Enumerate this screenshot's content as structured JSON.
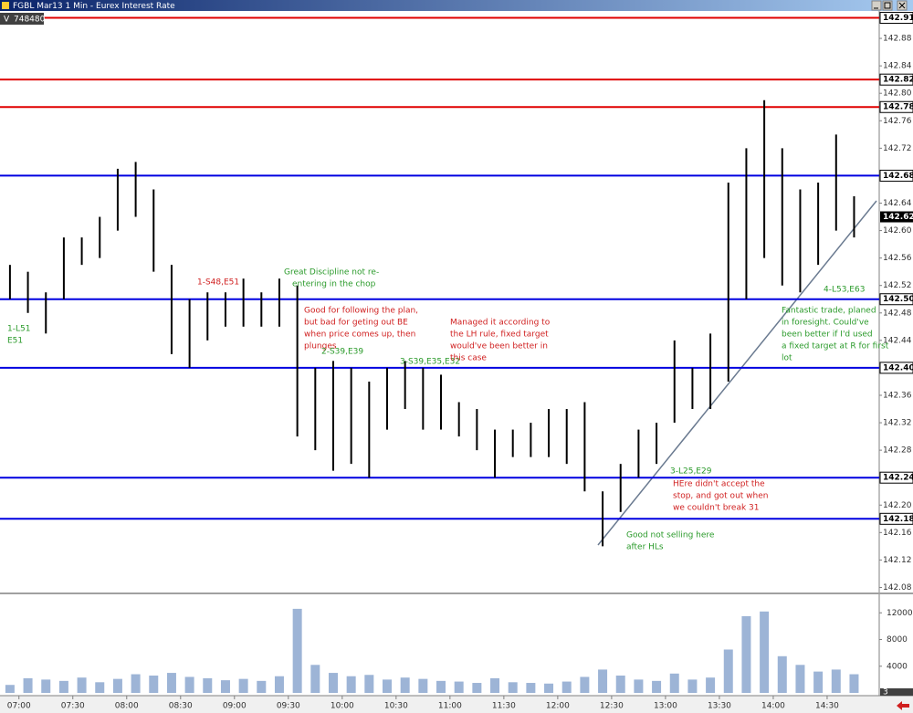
{
  "window_title": "FGBL Mar13 1 Min - Eurex Interest Rate",
  "volume_label": "V",
  "volume_total": 748480,
  "chart_data": {
    "type": "hilo",
    "x": [
      "06:50",
      "07:00",
      "07:10",
      "07:20",
      "07:30",
      "07:40",
      "07:50",
      "08:00",
      "08:10",
      "08:20",
      "08:30",
      "08:40",
      "08:50",
      "09:00",
      "09:10",
      "09:20",
      "09:30",
      "09:40",
      "09:50",
      "10:00",
      "10:10",
      "10:20",
      "10:30",
      "10:40",
      "10:50",
      "11:00",
      "11:10",
      "11:20",
      "11:30",
      "11:40",
      "11:50",
      "12:00",
      "12:10",
      "12:20",
      "12:30",
      "12:40",
      "12:50",
      "13:00",
      "13:10",
      "13:20",
      "13:30",
      "13:40",
      "13:50",
      "14:00",
      "14:10",
      "14:20",
      "14:30",
      "14:40"
    ],
    "high": [
      142.55,
      142.54,
      142.51,
      142.59,
      142.59,
      142.62,
      142.69,
      142.7,
      142.66,
      142.55,
      142.5,
      142.51,
      142.51,
      142.53,
      142.51,
      142.53,
      142.52,
      142.4,
      142.41,
      142.4,
      142.38,
      142.4,
      142.41,
      142.4,
      142.39,
      142.35,
      142.34,
      142.31,
      142.31,
      142.32,
      142.34,
      142.34,
      142.35,
      142.22,
      142.26,
      142.31,
      142.32,
      142.44,
      142.4,
      142.45,
      142.67,
      142.72,
      142.79,
      142.72,
      142.66,
      142.67,
      142.74,
      142.65
    ],
    "low": [
      142.5,
      142.48,
      142.45,
      142.5,
      142.55,
      142.56,
      142.6,
      142.62,
      142.54,
      142.42,
      142.4,
      142.44,
      142.46,
      142.46,
      142.46,
      142.46,
      142.3,
      142.28,
      142.25,
      142.26,
      142.24,
      142.31,
      142.34,
      142.31,
      142.31,
      142.3,
      142.28,
      142.24,
      142.27,
      142.27,
      142.27,
      142.26,
      142.22,
      142.14,
      142.19,
      142.24,
      142.26,
      142.32,
      142.34,
      142.34,
      142.38,
      142.5,
      142.56,
      142.52,
      142.51,
      142.55,
      142.6,
      142.59
    ],
    "color": "#000000",
    "xlim": [
      "06:52",
      "14:59"
    ],
    "xticks": [
      "07:00",
      "07:30",
      "08:00",
      "08:30",
      "09:00",
      "09:30",
      "10:00",
      "10:30",
      "11:00",
      "11:30",
      "12:00",
      "12:30",
      "13:00",
      "13:30",
      "14:00",
      "14:30"
    ],
    "ylim": [
      142.07,
      142.92
    ],
    "yticks": [
      142.08,
      142.12,
      142.16,
      {
        "value": 142.2,
        "label": "142.20"
      },
      142.28,
      142.32,
      142.36,
      142.44,
      142.48,
      142.52,
      142.56,
      {
        "value": 142.6,
        "label": "142.60"
      },
      142.64,
      142.72,
      142.76,
      {
        "value": 142.8,
        "label": "142.80"
      },
      142.84,
      142.88
    ],
    "levels": [
      {
        "value": 142.91,
        "color": "#e00000"
      },
      {
        "value": 142.82,
        "color": "#e00000"
      },
      {
        "value": 142.78,
        "color": "#e00000"
      },
      {
        "value": 142.68,
        "color": "#0000e0"
      },
      {
        "value": 142.5,
        "label": "142.50",
        "color": "#0000e0"
      },
      {
        "value": 142.4,
        "label": "142.40",
        "color": "#0000e0"
      },
      {
        "value": 142.24,
        "color": "#0000e0"
      },
      {
        "value": 142.18,
        "color": "#0000e0"
      }
    ],
    "last_price": 142.62,
    "annotations": [
      {
        "lines": [
          "1-L51",
          "E51"
        ],
        "color": "#2a9a2a"
      },
      {
        "lines": [
          "1-S48,E51"
        ],
        "color": "#d02020"
      },
      {
        "lines": [
          "Great Discipline not re-",
          "entering in the chop"
        ],
        "color": "#2a9a2a"
      },
      {
        "lines": [
          "Good for following the plan,",
          "but bad for geting out BE",
          "when price comes up, then",
          "plunges"
        ],
        "color": "#d02020"
      },
      {
        "lines": [
          "2-S39,E39"
        ],
        "color": "#2a9a2a"
      },
      {
        "lines": [
          "3-S39,E35,E32"
        ],
        "color": "#2a9a2a"
      },
      {
        "lines": [
          "Managed it according to",
          "the LH rule, fixed target",
          "would've been better in",
          "this case"
        ],
        "color": "#d02020"
      },
      {
        "lines": [
          "3-L25,E29"
        ],
        "color": "#2a9a2a"
      },
      {
        "lines": [
          "HEre didn't accept the",
          "stop, and got out when",
          "we couldn't break 31"
        ],
        "color": "#d02020"
      },
      {
        "lines": [
          "Good not selling here",
          "after HLs"
        ],
        "color": "#2a9a2a"
      },
      {
        "lines": [
          "4-L53,E63"
        ],
        "color": "#2a9a2a"
      },
      {
        "lines": [
          "Fantastic trade, planed",
          "in foresight. Could've",
          "been better if I'd used",
          "a fixed target at R for first",
          "lot"
        ],
        "color": "#2a9a2a"
      }
    ],
    "volume": {
      "values": [
        1200,
        2200,
        2000,
        1800,
        2300,
        1600,
        2100,
        2800,
        2600,
        3000,
        2400,
        2200,
        1900,
        2100,
        1800,
        2500,
        12600,
        4200,
        3000,
        2500,
        2700,
        2000,
        2300,
        2100,
        1800,
        1700,
        1500,
        2200,
        1600,
        1500,
        1400,
        1700,
        2400,
        3500,
        2600,
        2000,
        1800,
        2900,
        2000,
        2300,
        6500,
        11500,
        12200,
        5500,
        4200,
        3200,
        3500,
        2800
      ],
      "color": "#9db4d6",
      "ylim": [
        0,
        14500
      ],
      "yticks": [
        4000,
        8000,
        12000
      ],
      "last": 3
    }
  }
}
